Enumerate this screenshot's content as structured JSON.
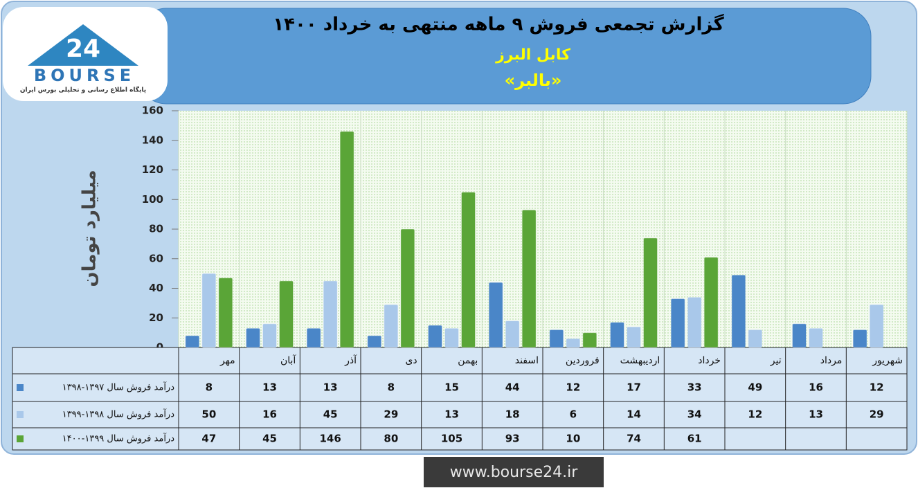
{
  "logo": {
    "number": "24",
    "brand": "BOURSE",
    "tagline": "پایگاه اطلاع رسانی و تحلیلی بورس ایران"
  },
  "footer": {
    "url": "www.bourse24.ir"
  },
  "chart_data": {
    "type": "bar",
    "title": "گزارش تجمعی فروش ۹ ماهه منتهی به خرداد ۱۴۰۰",
    "subtitle": "کابل البرز",
    "symbol": "«بالبر»",
    "y_label": "میلیارد تومان",
    "categories": [
      "مهر",
      "آبان",
      "آذر",
      "دی",
      "بهمن",
      "اسفند",
      "فروردین",
      "اردیبهشت",
      "خرداد",
      "تیر",
      "مرداد",
      "شهریور"
    ],
    "series": [
      {
        "name": "درآمد فروش سال ۱۳۹۷-۱۳۹۸",
        "color": "#4a86c8",
        "values": [
          8,
          13,
          13,
          8,
          15,
          44,
          12,
          17,
          33,
          49,
          16,
          12
        ]
      },
      {
        "name": "درآمد فروش سال ۱۳۹۸-۱۳۹۹",
        "color": "#a9c8ea",
        "values": [
          50,
          16,
          45,
          29,
          13,
          18,
          6,
          14,
          34,
          12,
          13,
          29
        ]
      },
      {
        "name": "درآمد فروش سال ۱۳۹۹-۱۴۰۰",
        "color": "#5aa537",
        "values": [
          47,
          45,
          146,
          80,
          105,
          93,
          10,
          74,
          61,
          null,
          null,
          null
        ]
      }
    ],
    "ylim": [
      0,
      160
    ],
    "yticks": [
      0,
      20,
      40,
      60,
      80,
      100,
      120,
      140,
      160
    ],
    "grid": true
  }
}
